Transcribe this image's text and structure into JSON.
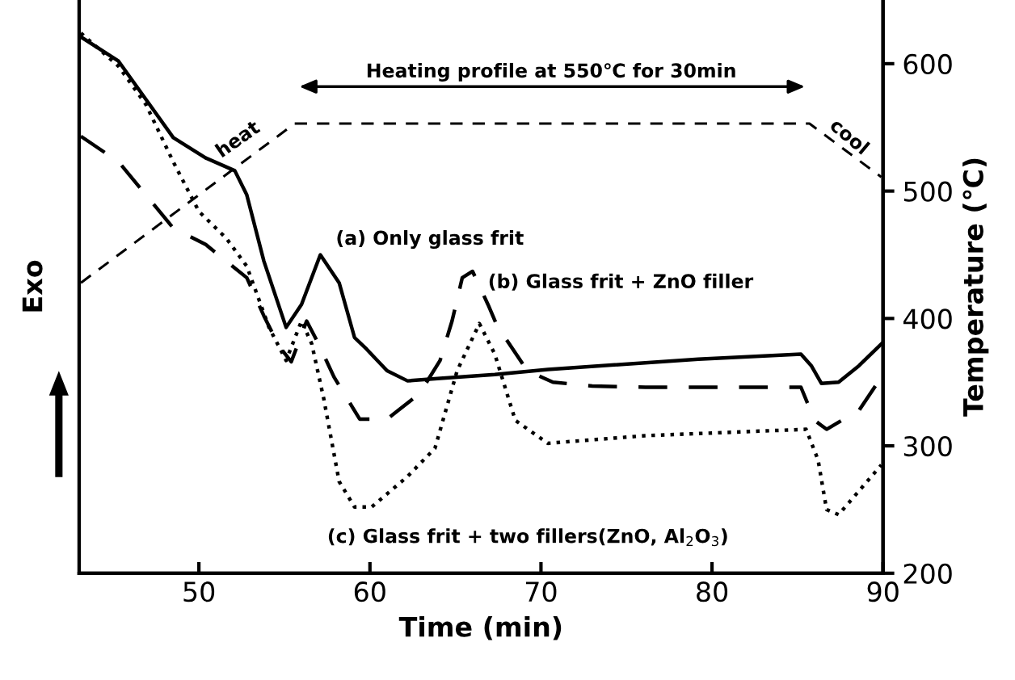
{
  "chart_data": {
    "type": "line",
    "xlabel": "Time (min)",
    "ylabel": "Exo",
    "y2label": "Temperature (℃)",
    "xlim": [
      43,
      90
    ],
    "xticks": [
      50,
      60,
      70,
      80,
      90
    ],
    "y2lim": [
      200,
      650
    ],
    "y2ticks": [
      200,
      300,
      400,
      500,
      600
    ],
    "grid": false,
    "legend": false,
    "marker": "none",
    "series": [
      {
        "name": "(a) Only glass frit",
        "color": "#000000",
        "line_style": "solid",
        "axis": "y2",
        "x": [
          43.1,
          45.3,
          46.9,
          48.5,
          50.4,
          52.1,
          52.8,
          53.8,
          55.1,
          56.0,
          57.1,
          58.2,
          59.1,
          59.8,
          61.0,
          62.2,
          64.1,
          67.3,
          70.4,
          79.2,
          85.2,
          85.8,
          86.4,
          87.4,
          88.6,
          89.9
        ],
        "values": [
          621,
          602,
          572,
          542,
          526,
          516,
          497,
          445,
          393,
          411,
          450,
          428,
          385,
          376,
          359,
          351,
          353,
          356,
          360,
          368,
          372,
          363,
          349,
          350,
          363,
          380
        ]
      },
      {
        "name": "(b) Glass frit + ZnO filler",
        "color": "#000000",
        "line_style": "dashed",
        "axis": "y2",
        "x": [
          43.1,
          45.3,
          46.9,
          48.5,
          50.4,
          51.6,
          52.8,
          53.8,
          54.7,
          55.4,
          56.3,
          57.0,
          57.9,
          59.4,
          61.0,
          62.9,
          64.1,
          64.8,
          65.4,
          66.0,
          66.9,
          67.6,
          67.9,
          69.2,
          70.7,
          73.0,
          76.1,
          82.4,
          85.2,
          86.0,
          86.7,
          88.6,
          89.9
        ],
        "values": [
          543,
          523,
          497,
          471,
          458,
          445,
          432,
          402,
          378,
          366,
          398,
          380,
          354,
          321,
          321,
          341,
          367,
          398,
          432,
          437,
          411,
          389,
          385,
          359,
          350,
          347,
          346,
          346,
          346,
          320,
          313,
          328,
          354
        ]
      },
      {
        "name": "(c) Glass frit + two fillers(ZnO, Al$_{2}$O$_{3}$)",
        "color": "#000000",
        "line_style": "dotted",
        "axis": "y2",
        "x": [
          43.1,
          45.3,
          46.9,
          48.5,
          50.0,
          51.6,
          52.8,
          54.1,
          55.1,
          56.0,
          56.6,
          57.3,
          58.2,
          59.1,
          60.1,
          62.2,
          63.8,
          65.1,
          66.4,
          67.3,
          68.5,
          70.4,
          76.1,
          85.5,
          86.2,
          86.7,
          87.4,
          89.9
        ],
        "values": [
          624,
          598,
          568,
          523,
          484,
          463,
          441,
          393,
          367,
          398,
          380,
          337,
          272,
          252,
          252,
          276,
          298,
          359,
          396,
          372,
          320,
          302,
          308,
          313,
          289,
          250,
          246,
          285
        ]
      },
      {
        "color": "#000000",
        "line_style": "dashed",
        "axis": "y2",
        "x": [
          43.1,
          55.6,
          85.7,
          89.9
        ],
        "values": [
          428,
          553,
          553,
          511
        ]
      }
    ],
    "annotations": [
      "heat",
      "cool",
      "Heating profile at 550℃ for 30min"
    ]
  }
}
